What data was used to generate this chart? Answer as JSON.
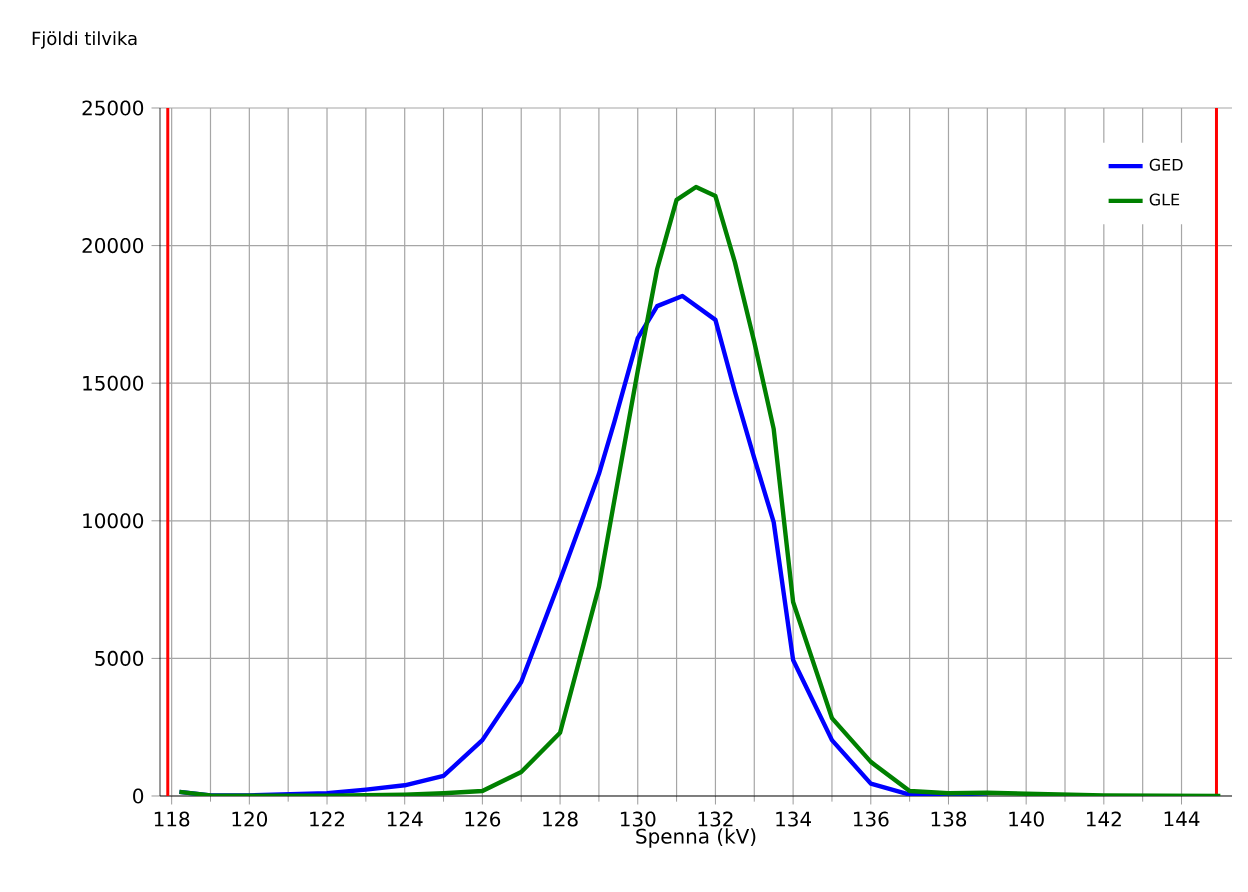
{
  "chart_data": {
    "type": "line",
    "ylabel": "Fjöldi tilvika",
    "xlabel": "Spenna (kV)",
    "xlim": [
      117.7,
      145.3
    ],
    "ylim": [
      0,
      25000
    ],
    "xticks": [
      118,
      120,
      122,
      124,
      126,
      128,
      130,
      132,
      134,
      136,
      138,
      140,
      142,
      144
    ],
    "yticks": [
      0,
      5000,
      10000,
      15000,
      20000,
      25000
    ],
    "grid": true,
    "legend": "top right",
    "line_style": "solid",
    "marker": "none",
    "ref_lines": [
      {
        "axis": "x",
        "value": 117.9,
        "color": "#ff0000"
      },
      {
        "axis": "x",
        "value": 144.9,
        "color": "#ff0000"
      }
    ],
    "series": [
      {
        "name": "GED",
        "color": "#0000ff",
        "x": [
          118.2,
          119,
          120,
          122,
          123,
          124,
          125,
          126,
          127,
          128,
          129,
          129.4,
          130,
          130.5,
          131.15,
          132,
          132.5,
          133,
          133.5,
          134,
          135,
          136,
          137,
          138,
          139
        ],
        "values": [
          150,
          20,
          20,
          100,
          230,
          390,
          730,
          2030,
          4140,
          7850,
          11700,
          13600,
          16640,
          17800,
          18170,
          17300,
          14700,
          12280,
          9950,
          4940,
          2030,
          450,
          50,
          50,
          100
        ]
      },
      {
        "name": "GLE",
        "color": "#008000",
        "x": [
          118.2,
          119,
          120,
          122,
          124,
          125,
          126,
          127,
          128,
          129,
          129.4,
          130,
          130.5,
          131,
          131.5,
          132,
          132.5,
          133,
          133.5,
          134,
          135,
          136,
          137,
          138,
          139,
          140,
          142,
          145
        ],
        "values": [
          150,
          20,
          10,
          10,
          50,
          100,
          180,
          870,
          2300,
          7600,
          10760,
          15450,
          19150,
          21660,
          22130,
          21800,
          19400,
          16500,
          13340,
          7050,
          2830,
          1240,
          180,
          100,
          120,
          80,
          20,
          0
        ]
      }
    ]
  }
}
